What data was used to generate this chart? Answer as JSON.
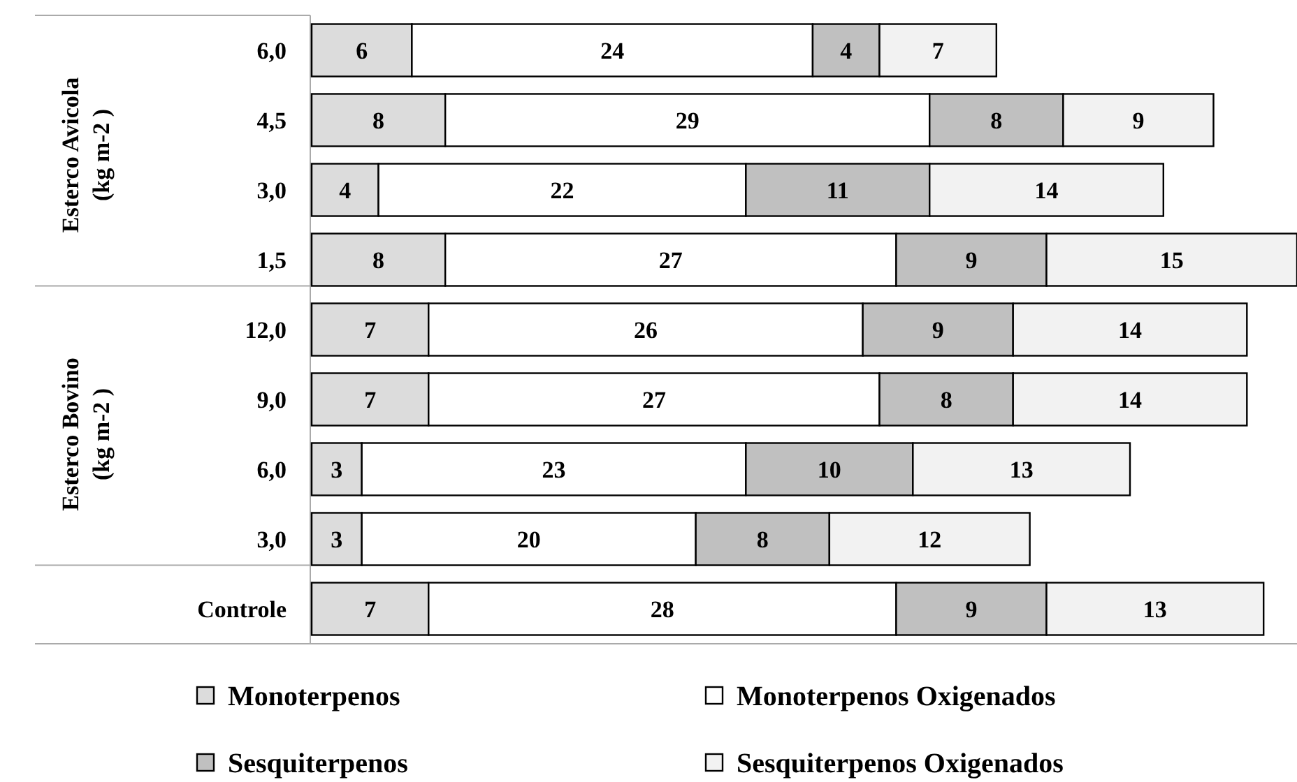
{
  "chart_data": {
    "type": "bar",
    "orientation": "horizontal",
    "stacked": true,
    "legend": "bottom",
    "data_labels": true,
    "categories": [
      "6,0",
      "4,5",
      "3,0",
      "1,5",
      "12,0",
      "9,0",
      "6,0",
      "3,0",
      "Controle"
    ],
    "annotations": [
      "Esterco Avicola (kg m-2 )",
      "Esterco Bovino (kg m-2 )"
    ],
    "series": [
      {
        "name": "Monoterpenos",
        "color": "#dcdcdc",
        "values": [
          6,
          8,
          4,
          8,
          7,
          7,
          3,
          3,
          7
        ]
      },
      {
        "name": "Monoterpenos Oxigenados",
        "color": "#ffffff",
        "values": [
          24,
          29,
          22,
          27,
          26,
          27,
          23,
          20,
          28
        ]
      },
      {
        "name": "Sesquiterpenos",
        "color": "#c0c0c0",
        "values": [
          4,
          8,
          11,
          9,
          9,
          8,
          10,
          8,
          9
        ]
      },
      {
        "name": "Sesquiterpenos Oxigenados",
        "color": "#f2f2f2",
        "values": [
          7,
          9,
          14,
          15,
          14,
          14,
          13,
          12,
          13
        ]
      }
    ]
  }
}
